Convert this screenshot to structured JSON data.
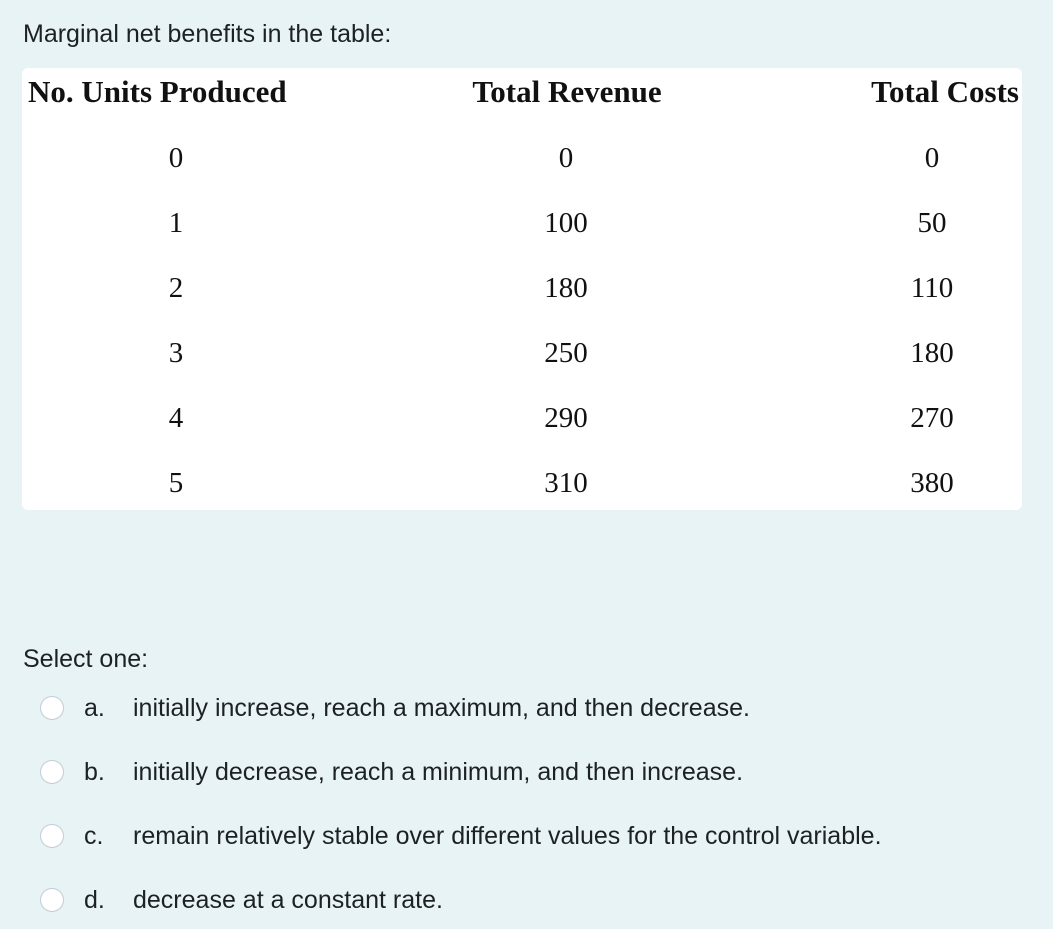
{
  "question": {
    "text": "Marginal net benefits in the table:"
  },
  "table": {
    "headers": [
      "No. Units Produced",
      "Total Revenue",
      "Total Costs"
    ],
    "rows": [
      [
        "0",
        "0",
        "0"
      ],
      [
        "1",
        "100",
        "50"
      ],
      [
        "2",
        "180",
        "110"
      ],
      [
        "3",
        "250",
        "180"
      ],
      [
        "4",
        "290",
        "270"
      ],
      [
        "5",
        "310",
        "380"
      ]
    ]
  },
  "answer": {
    "prompt": "Select one:",
    "options": [
      {
        "letter": "a.",
        "text": "initially increase, reach a maximum, and then decrease.",
        "selected": false
      },
      {
        "letter": "b.",
        "text": "initially decrease, reach a minimum, and then increase.",
        "selected": false
      },
      {
        "letter": "c.",
        "text": "remain relatively stable over different values for the control variable.",
        "selected": false
      },
      {
        "letter": "d.",
        "text": "decrease at a constant rate.",
        "selected": false
      }
    ]
  },
  "colors": {
    "background": "#e7f3f5",
    "card": "#ffffff",
    "text": "#1d2125",
    "radio_border": "#c4cbd2"
  }
}
